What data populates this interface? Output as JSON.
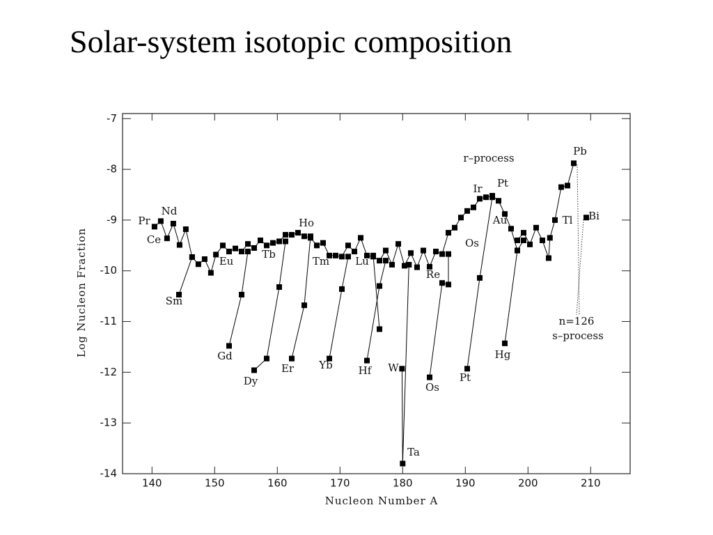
{
  "title": "Solar-system isotopic composition",
  "chart_data": {
    "type": "line",
    "xlabel": "Nucleon Number A",
    "ylabel": "Log Nucleon Fraction",
    "xlim": [
      135.3,
      216.3
    ],
    "ylim": [
      -14,
      -6.9
    ],
    "xticks": [
      140,
      150,
      160,
      170,
      180,
      190,
      200,
      210
    ],
    "yticks": [
      -14,
      -13,
      -12,
      -11,
      -10,
      -9,
      -8,
      -7
    ],
    "color": "#000000",
    "lines": [
      {
        "x": [
          140.4,
          141.4,
          142.4,
          143.4,
          144.4,
          145.4,
          146.4,
          147.4,
          148.4,
          149.4,
          150.2,
          151.3,
          152.3,
          153.3,
          154.3,
          155.3,
          156.3,
          157.3,
          158.3,
          159.3,
          160.3,
          161.3,
          162.3,
          163.3,
          164.3,
          165.3,
          166.3,
          167.3,
          168.3,
          169.3,
          170.3,
          171.3,
          172.3,
          173.3,
          174.3,
          175.3,
          176.3,
          177.3,
          178.3,
          179.3,
          180.3,
          181.3,
          182.3,
          183.3,
          184.3,
          185.3,
          186.3,
          187.3,
          188.3,
          189.3,
          190.3,
          191.3,
          192.3,
          193.3,
          194.3,
          195.3,
          196.3,
          197.3,
          198.3
        ],
        "values": [
          -9.13,
          -9.02,
          -9.36,
          -9.07,
          -9.49,
          -9.18,
          -9.73,
          -9.87,
          -9.77,
          -10.04,
          -9.68,
          -9.5,
          -9.62,
          -9.56,
          -9.62,
          -9.47,
          -9.55,
          -9.4,
          -9.5,
          -9.45,
          -9.42,
          -9.29,
          -9.29,
          -9.25,
          -9.32,
          -9.35,
          -9.5,
          -9.45,
          -9.7,
          -9.7,
          -9.72,
          -9.5,
          -9.62,
          -9.35,
          -9.7,
          -9.72,
          -9.8,
          -9.6,
          -9.88,
          -9.47,
          -9.9,
          -9.65,
          -9.93,
          -9.6,
          -9.92,
          -9.62,
          -9.67,
          -9.25,
          -9.15,
          -8.95,
          -8.82,
          -8.75,
          -8.58,
          -8.55,
          -8.52,
          -8.62,
          -8.88,
          -9.17,
          -9.6
        ]
      },
      {
        "x": [
          198.3,
          199.3,
          200.3,
          201.3,
          202.3,
          203.3,
          203.5,
          204.3,
          205.3,
          206.3,
          207.3
        ],
        "values": [
          -9.4,
          -9.25,
          -9.48,
          -9.15,
          -9.4,
          -9.75,
          -9.35,
          -9.0,
          -8.35,
          -8.32,
          -7.88
        ]
      },
      {
        "x": [
          144.3,
          146.4
        ],
        "values": [
          -10.47,
          -9.73
        ]
      },
      {
        "x": [
          152.3,
          154.3,
          155.3
        ],
        "values": [
          -11.48,
          -10.47,
          -9.62
        ]
      },
      {
        "x": [
          156.3,
          158.3,
          160.3,
          161.3
        ],
        "values": [
          -11.96,
          -11.73,
          -10.32,
          -9.42
        ]
      },
      {
        "x": [
          162.3,
          164.3,
          165.3
        ],
        "values": [
          -11.73,
          -10.68,
          -9.32
        ]
      },
      {
        "x": [
          168.3,
          170.3,
          171.3
        ],
        "values": [
          -11.73,
          -10.36,
          -9.72
        ]
      },
      {
        "x": [
          174.3,
          176.3,
          177.3
        ],
        "values": [
          -11.77,
          -10.3,
          -9.8
        ]
      },
      {
        "x": [
          175.3,
          176.3
        ],
        "values": [
          -9.7,
          -11.15
        ]
      },
      {
        "x": [
          179.9,
          180.0,
          181.0
        ],
        "values": [
          -11.93,
          -13.8,
          -9.88
        ]
      },
      {
        "x": [
          184.3,
          186.3,
          187.3,
          187.3
        ],
        "values": [
          -12.1,
          -10.24,
          -10.27,
          -9.67
        ]
      },
      {
        "x": [
          190.3,
          192.3,
          194.3
        ],
        "values": [
          -11.93,
          -10.14,
          -8.55
        ]
      },
      {
        "x": [
          196.3,
          198.3,
          199.3
        ],
        "values": [
          -11.43,
          -9.6,
          -9.4
        ]
      },
      {
        "x": [
          209.3
        ],
        "values": [
          -8.95
        ]
      }
    ],
    "annotations": [
      "Pr",
      "Nd",
      "Ce",
      "Sm",
      "Eu",
      "Gd",
      "Dy",
      "Tb",
      "Er",
      "Ho",
      "Tm",
      "Yb",
      "Hf",
      "Lu",
      "W",
      "Ta",
      "Os",
      "Re",
      "Pt",
      "Ir",
      "Pt",
      "Os",
      "Au",
      "Hg",
      "Tl",
      "Pb",
      "Bi",
      "r–process",
      "n=126",
      "s–process"
    ]
  }
}
